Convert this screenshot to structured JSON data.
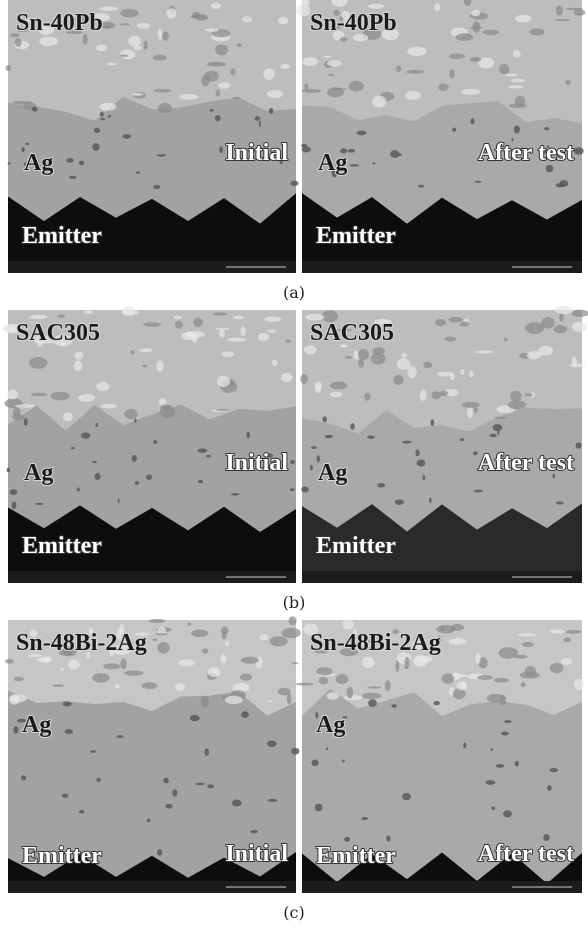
{
  "figure": {
    "rows": [
      {
        "caption": "(a)",
        "panels": [
          {
            "solder": "Sn-40Pb",
            "layer": "Ag",
            "substrate": "Emitter",
            "state": "Initial"
          },
          {
            "solder": "Sn-40Pb",
            "layer": "Ag",
            "substrate": "Emitter",
            "state": "After test"
          }
        ]
      },
      {
        "caption": "(b)",
        "panels": [
          {
            "solder": "SAC305",
            "layer": "Ag",
            "substrate": "Emitter",
            "state": "Initial"
          },
          {
            "solder": "SAC305",
            "layer": "Ag",
            "substrate": "Emitter",
            "state": "After test"
          }
        ]
      },
      {
        "caption": "(c)",
        "panels": [
          {
            "solder": "Sn-48Bi-2Ag",
            "layer": "Ag",
            "substrate": "Emitter",
            "state": "Initial"
          },
          {
            "solder": "Sn-48Bi-2Ag",
            "layer": "Ag",
            "substrate": "Emitter",
            "state": "After test"
          }
        ]
      }
    ]
  }
}
